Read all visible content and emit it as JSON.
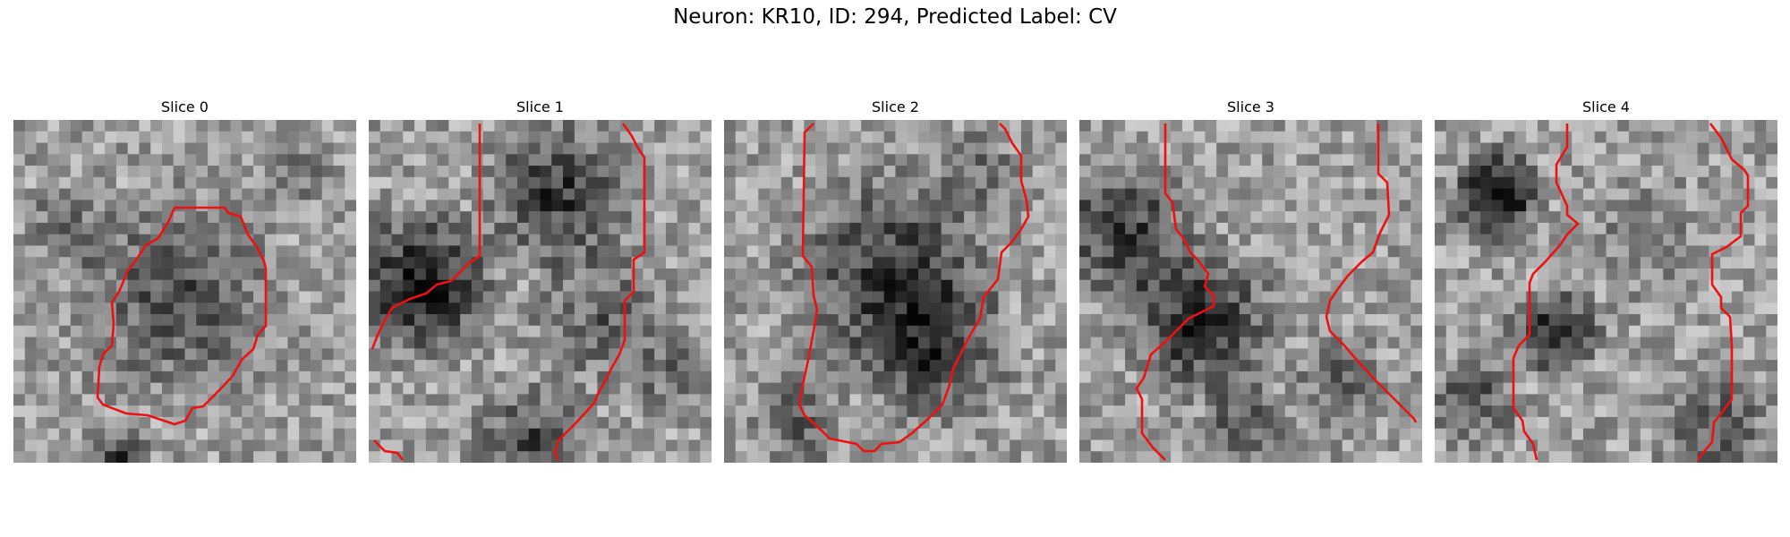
{
  "title": "Neuron: KR10, ID: 294, Predicted Label: CV",
  "slices": [
    {
      "label": "Slice 0"
    },
    {
      "label": "Slice 1"
    },
    {
      "label": "Slice 2"
    },
    {
      "label": "Slice 3"
    },
    {
      "label": "Slice 4"
    }
  ],
  "colors": {
    "contour": "#ee1111"
  }
}
